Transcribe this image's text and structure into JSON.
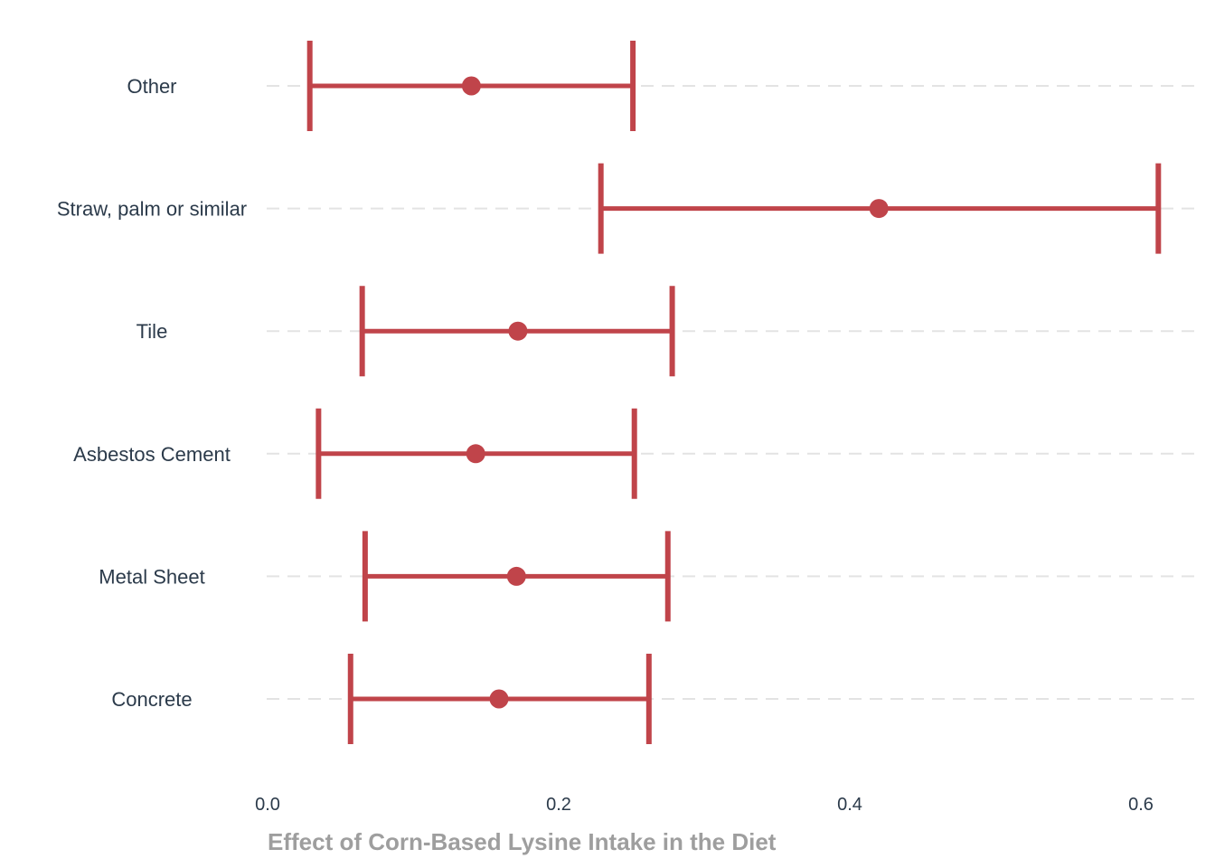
{
  "chart_data": {
    "type": "scatter",
    "subtype": "point-range",
    "categories": [
      "Other",
      "Straw, palm or similar",
      "Tile",
      "Asbestos Cement",
      "Metal Sheet",
      "Concrete"
    ],
    "series": [
      {
        "estimate": [
          0.14,
          0.42,
          0.172,
          0.143,
          0.171,
          0.159
        ],
        "lower": [
          0.029,
          0.229,
          0.065,
          0.035,
          0.067,
          0.057
        ],
        "upper": [
          0.251,
          0.612,
          0.278,
          0.252,
          0.275,
          0.262
        ]
      }
    ],
    "xlabel": "Effect of Corn-Based Lysine Intake in the Diet",
    "ylabel": "",
    "title": "",
    "xlim": [
      0.0,
      0.64
    ],
    "xticks": [
      "0.0",
      "0.2",
      "0.4",
      "0.6"
    ],
    "grid": "horizontal dashed",
    "legend": "none",
    "colors": {
      "mark": "#c0444a",
      "grid": "#e3e3e3",
      "text": "#2b3a4a",
      "axis_title": "#9e9e9e"
    }
  }
}
